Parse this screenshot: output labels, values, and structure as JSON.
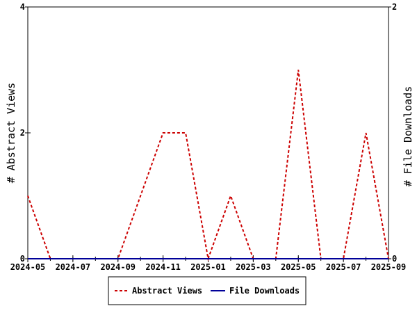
{
  "chart_data": {
    "type": "line",
    "x_ticks": [
      "2024-05",
      "2024-07",
      "2024-09",
      "2024-11",
      "2025-01",
      "2025-03",
      "2025-05",
      "2025-07",
      "2025-09"
    ],
    "x_range": [
      "2024-05",
      "2025-09"
    ],
    "x": [
      "2024-05",
      "2024-06",
      "2024-07",
      "2024-08",
      "2024-09",
      "2024-10",
      "2024-11",
      "2024-12",
      "2025-01",
      "2025-02",
      "2025-03",
      "2025-04",
      "2025-05",
      "2025-06",
      "2025-07",
      "2025-08",
      "2025-09"
    ],
    "series": [
      {
        "name": "Abstract Views",
        "axis": "left",
        "color": "#cc0000",
        "style": "dashed",
        "values": [
          1,
          0,
          0,
          0,
          0,
          1,
          2,
          2,
          0,
          1,
          0,
          0,
          3,
          0,
          0,
          2,
          0
        ]
      },
      {
        "name": "File Downloads",
        "axis": "right",
        "color": "#000099",
        "style": "solid",
        "values": [
          0,
          0,
          0,
          0,
          0,
          0,
          0,
          0,
          0,
          0,
          0,
          0,
          0,
          0,
          0,
          0,
          0
        ]
      }
    ],
    "left_axis": {
      "label": "# Abstract Views",
      "ticks": [
        "0",
        "2",
        "4"
      ],
      "ylim": [
        0,
        4
      ]
    },
    "right_axis": {
      "label": "# File Downloads",
      "ticks": [
        "0",
        "2"
      ],
      "ylim": [
        0,
        2
      ]
    },
    "legend": {
      "position": "bottom",
      "entries": [
        "Abstract Views",
        "File Downloads"
      ]
    },
    "grid": false
  }
}
